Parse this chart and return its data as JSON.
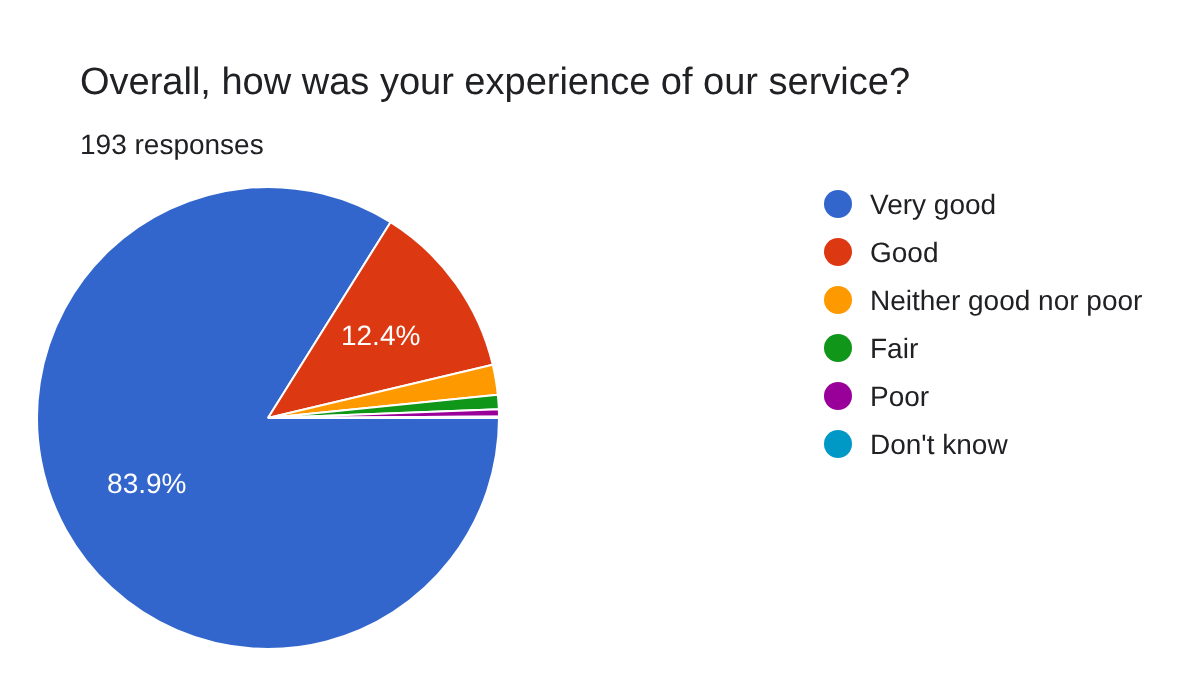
{
  "chart_data": {
    "type": "pie",
    "title": "Overall, how was your experience of our service?",
    "subtitle": "193 responses",
    "categories": [
      "Very good",
      "Good",
      "Neither good nor poor",
      "Fair",
      "Poor",
      "Don't know"
    ],
    "values": [
      83.9,
      12.4,
      2.1,
      1.0,
      0.5,
      0.1
    ],
    "colors": [
      "#3366cc",
      "#dc3912",
      "#ff9900",
      "#109618",
      "#990099",
      "#0099c6"
    ],
    "value_labels": [
      "83.9%",
      "12.4%",
      null,
      null,
      null,
      null
    ],
    "legend": "right"
  }
}
